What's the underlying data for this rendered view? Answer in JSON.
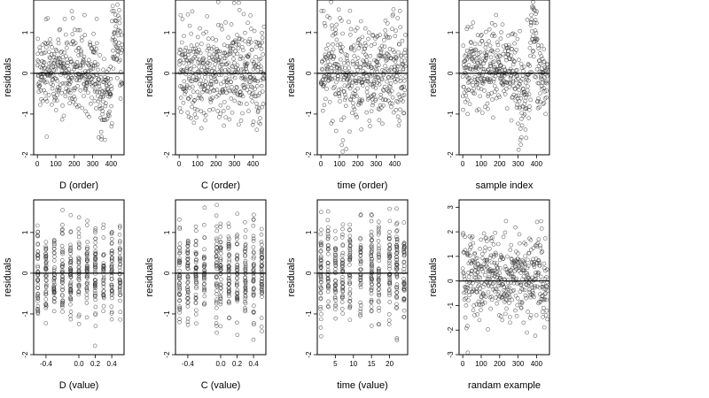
{
  "chart_data": [
    {
      "type": "scatter",
      "panel": "D-order",
      "xlabel": "D (order)",
      "ylabel": "residuals",
      "xlim": [
        -20,
        470
      ],
      "ylim": [
        -2,
        1.8
      ],
      "xticks": [
        0,
        100,
        200,
        300,
        400
      ],
      "yticks": [
        -2,
        -1,
        0,
        1
      ],
      "xtick_labels": [
        "0",
        "100",
        "200",
        "300",
        "400"
      ],
      "ytick_labels": [
        "-2",
        "-1",
        "0",
        "1"
      ],
      "reference_line_y": 0,
      "n_points": 460,
      "x_kind": "index",
      "x_range": [
        0,
        460
      ],
      "center": 0.05,
      "spread": 0.5,
      "feature": {
        "pos": 0.8,
        "width": 0.08,
        "shift": -0.8
      },
      "feature2": {
        "pos": 0.93,
        "width": 0.05,
        "shift": 0.9
      }
    },
    {
      "type": "scatter",
      "panel": "C-order",
      "xlabel": "C (order)",
      "ylabel": "residuals",
      "xlim": [
        -20,
        470
      ],
      "ylim": [
        -2,
        1.8
      ],
      "xticks": [
        0,
        100,
        200,
        300,
        400
      ],
      "yticks": [
        -2,
        -1,
        0,
        1
      ],
      "xtick_labels": [
        "0",
        "100",
        "200",
        "300",
        "400"
      ],
      "ytick_labels": [
        "-2",
        "-1",
        "0",
        "1"
      ],
      "reference_line_y": 0,
      "n_points": 460,
      "x_kind": "index",
      "x_range": [
        0,
        460
      ],
      "center": 0.05,
      "spread": 0.6
    },
    {
      "type": "scatter",
      "panel": "time-order",
      "xlabel": "time (order)",
      "ylabel": "residuals",
      "xlim": [
        -20,
        470
      ],
      "ylim": [
        -2,
        1.8
      ],
      "xticks": [
        0,
        100,
        200,
        300,
        400
      ],
      "yticks": [
        -2,
        -1,
        0,
        1
      ],
      "xtick_labels": [
        "0",
        "100",
        "200",
        "300",
        "400"
      ],
      "ytick_labels": [
        "-2",
        "-1",
        "0",
        "1"
      ],
      "reference_line_y": 0,
      "n_points": 460,
      "x_kind": "index",
      "x_range": [
        0,
        460
      ],
      "center": 0.05,
      "spread": 0.6
    },
    {
      "type": "scatter",
      "panel": "sample-index",
      "xlabel": "sample index",
      "ylabel": "residuals",
      "xlim": [
        -20,
        470
      ],
      "ylim": [
        -2,
        1.8
      ],
      "xticks": [
        0,
        100,
        200,
        300,
        400
      ],
      "yticks": [
        -2,
        -1,
        0,
        1
      ],
      "xtick_labels": [
        "0",
        "100",
        "200",
        "300",
        "400"
      ],
      "ytick_labels": [
        "-2",
        "-1",
        "0",
        "1"
      ],
      "reference_line_y": 0,
      "n_points": 460,
      "x_kind": "index",
      "x_range": [
        0,
        460
      ],
      "center": 0.1,
      "spread": 0.5,
      "feature": {
        "pos": 0.72,
        "width": 0.08,
        "shift": -0.9
      },
      "feature2": {
        "pos": 0.82,
        "width": 0.06,
        "shift": 1.0
      }
    },
    {
      "type": "scatter",
      "panel": "D-value",
      "xlabel": "D (value)",
      "ylabel": "residuals",
      "xlim": [
        -0.55,
        0.55
      ],
      "ylim": [
        -2,
        1.8
      ],
      "xticks": [
        -0.4,
        0,
        0.2,
        0.4
      ],
      "yticks": [
        -2,
        -1,
        0,
        1
      ],
      "xtick_labels": [
        "-0.4",
        "0.0",
        "0.2",
        "0.4"
      ],
      "ytick_labels": [
        "-2",
        "-1",
        "0",
        "1"
      ],
      "reference_line_y": 0,
      "n_points": 460,
      "x_kind": "discrete",
      "x_levels": [
        -0.5,
        -0.4,
        -0.3,
        -0.2,
        -0.1,
        0,
        0.1,
        0.2,
        0.3,
        0.4,
        0.5
      ],
      "center": 0.0,
      "spread": 0.55
    },
    {
      "type": "scatter",
      "panel": "C-value",
      "xlabel": "C (value)",
      "ylabel": "residuals",
      "xlim": [
        -0.55,
        0.55
      ],
      "ylim": [
        -2,
        1.8
      ],
      "xticks": [
        -0.4,
        0,
        0.2,
        0.4
      ],
      "yticks": [
        -2,
        -1,
        0,
        1
      ],
      "xtick_labels": [
        "-0.4",
        "0.0",
        "0.2",
        "0.4"
      ],
      "ytick_labels": [
        "-2",
        "-1",
        "0",
        "1"
      ],
      "reference_line_y": 0,
      "n_points": 460,
      "x_kind": "discrete",
      "x_levels": [
        -0.5,
        -0.4,
        -0.3,
        -0.2,
        -0.05,
        0,
        0.1,
        0.2,
        0.3,
        0.4,
        0.5
      ],
      "center": 0.0,
      "spread": 0.6
    },
    {
      "type": "scatter",
      "panel": "time-value",
      "xlabel": "time (value)",
      "ylabel": "residuals",
      "xlim": [
        0,
        25
      ],
      "ylim": [
        -2,
        1.8
      ],
      "xticks": [
        5,
        10,
        15,
        20
      ],
      "yticks": [
        -2,
        -1,
        0,
        1
      ],
      "xtick_labels": [
        "5",
        "10",
        "15",
        "20"
      ],
      "ytick_labels": [
        "-2",
        "-1",
        "0",
        "1"
      ],
      "reference_line_y": 0,
      "n_points": 460,
      "x_kind": "discrete",
      "x_levels": [
        1,
        3,
        5,
        7,
        9,
        12,
        15,
        17,
        20,
        22,
        24
      ],
      "center": 0.05,
      "spread": 0.6
    },
    {
      "type": "scatter",
      "panel": "random-example",
      "xlabel": "randam example",
      "ylabel": "residuals",
      "xlim": [
        -20,
        470
      ],
      "ylim": [
        -3,
        3.3
      ],
      "xticks": [
        0,
        100,
        200,
        300,
        400
      ],
      "yticks": [
        -3,
        -2,
        -1,
        0,
        1,
        2,
        3
      ],
      "xtick_labels": [
        "0",
        "100",
        "200",
        "300",
        "400"
      ],
      "ytick_labels": [
        "-3",
        "-2",
        "-1",
        "0",
        "1",
        "2",
        "3"
      ],
      "reference_line_y": 0,
      "n_points": 460,
      "x_kind": "index",
      "x_range": [
        0,
        460
      ],
      "center": 0.15,
      "spread": 0.9
    }
  ]
}
